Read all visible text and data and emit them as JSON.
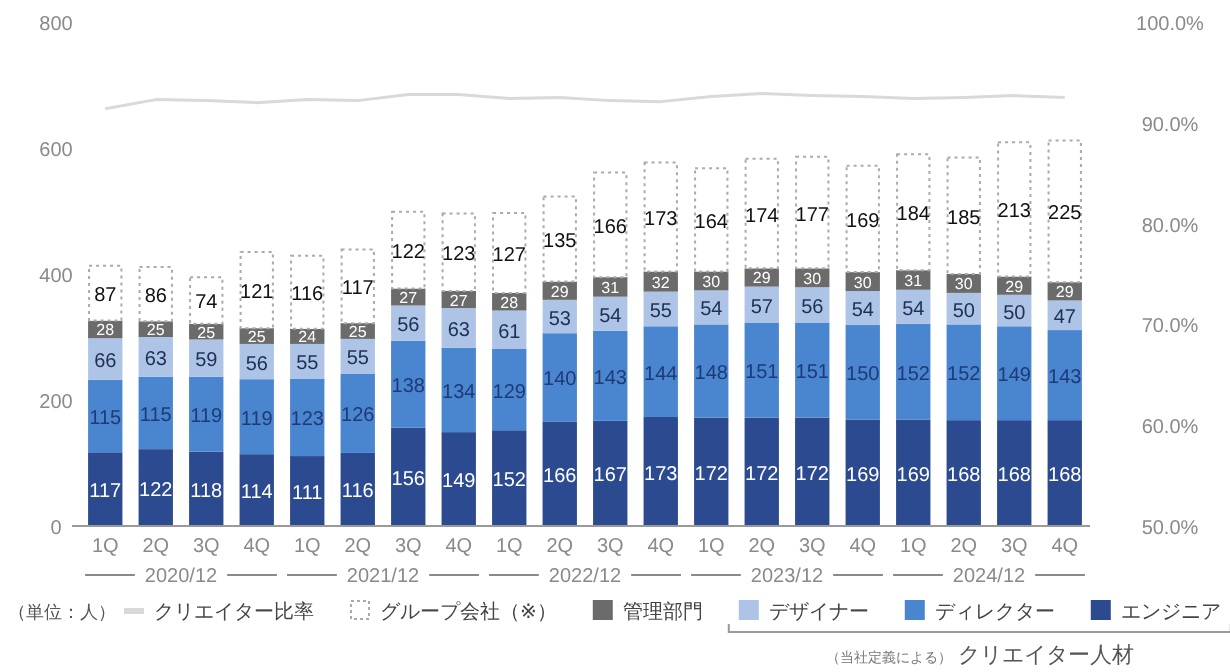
{
  "chart_data": {
    "type": "bar",
    "stacked": true,
    "categories": [
      "1Q",
      "2Q",
      "3Q",
      "4Q",
      "1Q",
      "2Q",
      "3Q",
      "4Q",
      "1Q",
      "2Q",
      "3Q",
      "4Q",
      "1Q",
      "2Q",
      "3Q",
      "4Q",
      "1Q",
      "2Q",
      "3Q",
      "4Q"
    ],
    "series": [
      {
        "name": "エンジニア",
        "color": "#2b4a8f",
        "values": [
          117,
          122,
          118,
          114,
          111,
          116,
          156,
          149,
          152,
          166,
          167,
          173,
          172,
          172,
          172,
          169,
          169,
          168,
          168,
          168
        ],
        "value_labels": [
          "117",
          "122",
          "118",
          "114",
          "111",
          "116",
          "156",
          "149",
          "152",
          "166",
          "167",
          "173",
          "172",
          "172",
          "172",
          "169",
          "169",
          "168",
          "168",
          "168"
        ]
      },
      {
        "name": "ディレクター",
        "color": "#4a86cf",
        "values": [
          115,
          115,
          119,
          119,
          123,
          126,
          138,
          134,
          129,
          140,
          143,
          144,
          148,
          151,
          151,
          150,
          152,
          152,
          149,
          143
        ],
        "value_labels": [
          "115",
          "115",
          "119",
          "119",
          "123",
          "126",
          "138",
          "134",
          "129",
          "140",
          "143",
          "144",
          "148",
          "151",
          "151",
          "150",
          "152",
          "152",
          "149",
          "143"
        ]
      },
      {
        "name": "デザイナー",
        "color": "#aec4e6",
        "values": [
          66,
          63,
          59,
          56,
          55,
          55,
          56,
          63,
          61,
          53,
          54,
          55,
          54,
          57,
          56,
          54,
          54,
          50,
          50,
          47
        ],
        "value_labels": [
          "66",
          "63",
          "59",
          "56",
          "55",
          "55",
          "56",
          "63",
          "61",
          "53",
          "54",
          "55",
          "54",
          "57",
          "56",
          "54",
          "54",
          "50",
          "50",
          "47"
        ]
      },
      {
        "name": "管理部門",
        "color": "#6b6b6b",
        "values": [
          28,
          25,
          25,
          25,
          24,
          25,
          27,
          27,
          28,
          29,
          31,
          32,
          30,
          29,
          30,
          30,
          31,
          30,
          29,
          29
        ],
        "value_labels": [
          "28",
          "25",
          "25",
          "25",
          "24",
          "25",
          "27",
          "27",
          "28",
          "29",
          "31",
          "32",
          "30",
          "29",
          "30",
          "30",
          "31",
          "30",
          "29",
          "29"
        ]
      },
      {
        "name": "グループ会社（※）",
        "color": "#ffffff",
        "line_style": "dotted",
        "values": [
          87,
          86,
          74,
          121,
          116,
          117,
          122,
          123,
          127,
          135,
          166,
          173,
          164,
          174,
          177,
          169,
          184,
          185,
          213,
          225
        ],
        "value_labels": [
          "87",
          "86",
          "74",
          "121",
          "116",
          "117",
          "122",
          "123",
          "127",
          "135",
          "166",
          "173",
          "164",
          "174",
          "177",
          "169",
          "184",
          "185",
          "213",
          "225"
        ]
      },
      {
        "name": "クリエイター比率",
        "type": "line",
        "axis": "y2",
        "color": "#d9d9d9",
        "values": [
          91.4,
          92.3,
          92.2,
          92.0,
          92.3,
          92.2,
          92.8,
          92.8,
          92.4,
          92.5,
          92.2,
          92.1,
          92.6,
          92.9,
          92.7,
          92.6,
          92.4,
          92.5,
          92.7,
          92.5
        ]
      }
    ],
    "ylim": [
      0,
      800
    ],
    "yticks": [
      0,
      200,
      400,
      600,
      800
    ],
    "y2lim": [
      50,
      100
    ],
    "y2ticks": [
      {
        "value": 50,
        "label": "50.0%"
      },
      {
        "value": 60,
        "label": "60.0%"
      },
      {
        "value": 70,
        "label": "70.0%"
      },
      {
        "value": 80,
        "label": "80.0%"
      },
      {
        "value": 90,
        "label": "90.0%"
      },
      {
        "value": 100,
        "label": "100.0%"
      }
    ],
    "legend": "bottom",
    "annotations": [
      "2020/12",
      "2021/12",
      "2022/12",
      "2023/12",
      "2024/12",
      "（単位：人）",
      "（当社定義による）",
      "クリエイター人材"
    ]
  }
}
